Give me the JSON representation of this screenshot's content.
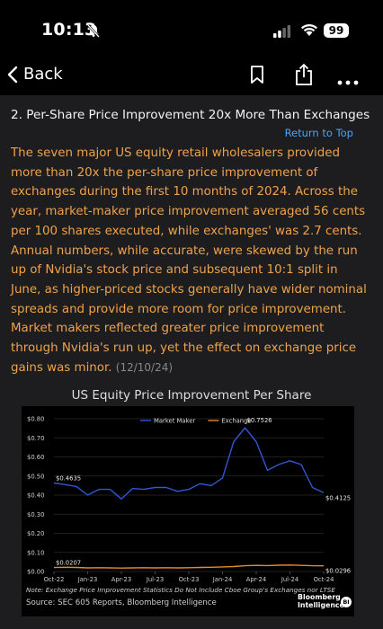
{
  "status_bar": {
    "time": "10:13",
    "battery": "99"
  },
  "nav": {
    "back_label": "Back"
  },
  "article": {
    "heading": "2. Per-Share Price Improvement 20x More Than Exchanges",
    "return_to_top": "Return to Top",
    "body": "The seven major US equity retail wholesalers provided more than 20x the per-share price improvement of exchanges during the first 10 months of 2024. Across the year, market-maker price improvement averaged 56 cents per 100 shares executed, while exchanges' was 2.7 cents. Annual numbers, while accurate, were skewed by the run up of Nvidia's stock price and subsequent 10:1 split in June, as higher-priced stocks generally have wider nominal spreads and provide more room for price improvement. Market makers reflected greater price improvement through Nvidia's run up, yet the effect on exchange price gains was minor.",
    "date": "(12/10/24)"
  },
  "chart_title": "US Equity Price Improvement Per Share",
  "chart_note": "Note: Exchange Price Improvement Statistics Do Not Include Cboe Group's Exchanges nor LTSE",
  "chart_source": "Source: SEC 605 Reports, Bloomberg Intelligence",
  "brand": {
    "line1": "Bloomberg",
    "line2": "Intelligence",
    "badge": "BI"
  },
  "colors": {
    "market_maker": "#2f57d6",
    "exchange": "#e28a2e",
    "body_text": "#f0a24a",
    "link": "#4aa3ff"
  },
  "chart_data": {
    "type": "line",
    "title": "US Equity Price Improvement Per Share",
    "xlabel": "",
    "ylabel": "",
    "ylim": [
      0,
      0.8
    ],
    "y_ticks": [
      "$0.00",
      "$0.10",
      "$0.20",
      "$0.30",
      "$0.40",
      "$0.50",
      "$0.60",
      "$0.70",
      "$0.80"
    ],
    "x_ticks": [
      "Oct-22",
      "Jan-23",
      "Apr-23",
      "Jul-23",
      "Oct-23",
      "Jan-24",
      "Apr-24",
      "Jul-24",
      "Oct-24"
    ],
    "legend_position": "top-center",
    "grid": true,
    "series": [
      {
        "name": "Market Maker",
        "values": [
          0.4635,
          0.455,
          0.445,
          0.4,
          0.43,
          0.43,
          0.38,
          0.435,
          0.43,
          0.44,
          0.44,
          0.42,
          0.43,
          0.46,
          0.45,
          0.49,
          0.68,
          0.7526,
          0.68,
          0.53,
          0.56,
          0.58,
          0.56,
          0.44,
          0.4125
        ]
      },
      {
        "name": "Exchange",
        "values": [
          0.0207,
          0.022,
          0.021,
          0.019,
          0.02,
          0.019,
          0.018,
          0.019,
          0.02,
          0.019,
          0.02,
          0.019,
          0.02,
          0.021,
          0.022,
          0.024,
          0.026,
          0.03,
          0.032,
          0.031,
          0.033,
          0.034,
          0.032,
          0.03,
          0.0296
        ]
      }
    ],
    "annotations": [
      {
        "text": "$0.4635",
        "x_index": 0,
        "y": 0.4635
      },
      {
        "text": "$0.7526",
        "x_index": 17,
        "y": 0.7526
      },
      {
        "text": "$0.4125",
        "x_index": 24,
        "y": 0.4125
      },
      {
        "text": "$0.0207",
        "x_index": 0,
        "y": 0.0207
      },
      {
        "text": "$0.0296",
        "x_index": 24,
        "y": 0.0296
      }
    ]
  }
}
